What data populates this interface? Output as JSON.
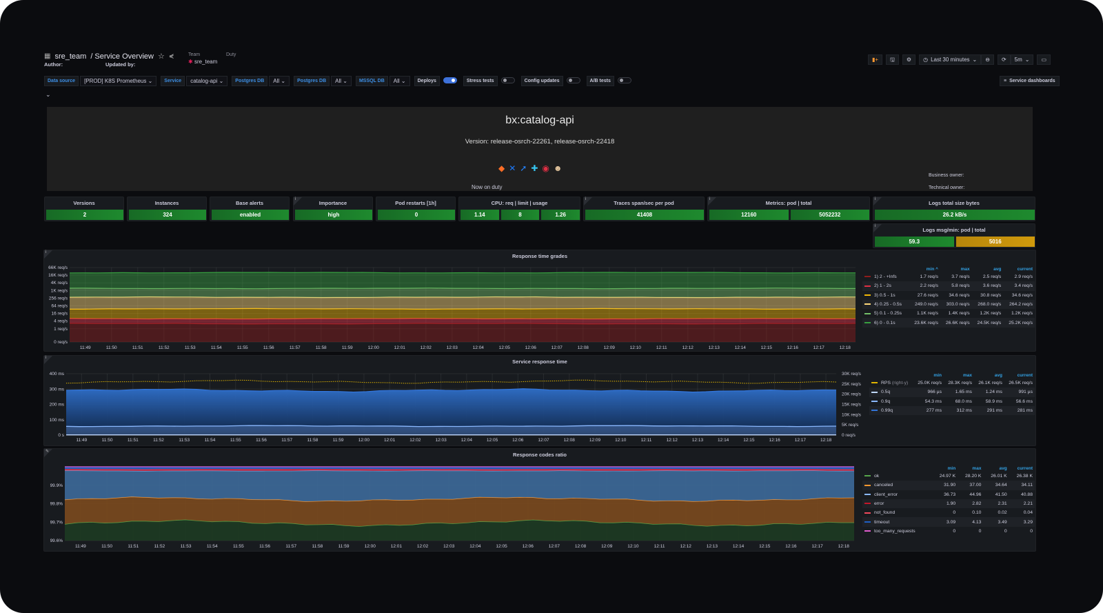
{
  "header": {
    "breadcrumb_team": "sre_team",
    "breadcrumb_sep": "/",
    "title": "Service Overview",
    "author_label": "Author:",
    "updated_label": "Updated by:",
    "team_label": "Team",
    "team_value": "sre_team",
    "duty_label": "Duty"
  },
  "toolbar": {
    "time_range": "Last 30 minutes",
    "refresh": "5m",
    "service_dashboards": "Service dashboards"
  },
  "variables": [
    {
      "label": "Data source",
      "value": "[PROD] K8S Prometheus"
    },
    {
      "label": "Service",
      "value": "catalog-api"
    },
    {
      "label": "Postgres DB",
      "value": "All"
    },
    {
      "label": "Postgres DB",
      "value": "All"
    },
    {
      "label": "MSSQL DB",
      "value": "All"
    }
  ],
  "toggles": [
    {
      "label": "Deploys",
      "on": true
    },
    {
      "label": "Stress tests",
      "on": false
    },
    {
      "label": "Config updates",
      "on": false
    },
    {
      "label": "A/B tests",
      "on": false
    }
  ],
  "info_panel": {
    "title": "bx:catalog-api",
    "version": "Version: release-osrch-22261, release-osrch-22418",
    "now_on_duty": "Now on duty",
    "business_owner": "Business owner:",
    "technical_owner": "Technical owner:"
  },
  "stats": {
    "versions": {
      "title": "Versions",
      "value": "2"
    },
    "instances": {
      "title": "Instances",
      "value": "324"
    },
    "base_alerts": {
      "title": "Base alerts",
      "value": "enabled"
    },
    "importance": {
      "title": "Importance",
      "value": "high"
    },
    "pod_restarts": {
      "title": "Pod restarts [1h]",
      "value": "0"
    },
    "cpu": {
      "title": "CPU: req | limit | usage",
      "values": [
        "1.14",
        "8",
        "1.26"
      ]
    },
    "traces": {
      "title": "Traces span/sec per pod",
      "value": "41408"
    },
    "metrics": {
      "title": "Metrics: pod | total",
      "values": [
        "12160",
        "5052232"
      ]
    },
    "logs_size": {
      "title": "Logs total size bytes",
      "value": "26.2 kB/s"
    },
    "logs_msg": {
      "title": "Logs msg/min: pod | total",
      "values": [
        "59.3",
        "5016"
      ]
    }
  },
  "time_labels": [
    "11:49",
    "11:50",
    "11:51",
    "11:52",
    "11:53",
    "11:54",
    "11:55",
    "11:56",
    "11:57",
    "11:58",
    "11:59",
    "12:00",
    "12:01",
    "12:02",
    "12:03",
    "12:04",
    "12:05",
    "12:06",
    "12:07",
    "12:08",
    "12:09",
    "12:10",
    "12:11",
    "12:12",
    "12:13",
    "12:14",
    "12:15",
    "12:16",
    "12:17",
    "12:18"
  ],
  "chart_data": [
    {
      "type": "area",
      "title": "Response time grades",
      "yscale": "log4",
      "yticks": [
        "66K req/s",
        "16K req/s",
        "4K req/s",
        "1K req/s",
        "256 req/s",
        "64 req/s",
        "16 req/s",
        "4 req/s",
        "1 req/s",
        "0 req/s"
      ],
      "legend_headers": [
        "min ^",
        "max",
        "avg",
        "current"
      ],
      "series": [
        {
          "name": "1) 2 - +Infs",
          "color": "#8f1c1c",
          "min": "1.7 req/s",
          "max": "3.7 req/s",
          "avg": "2.5 req/s",
          "current": "2.9 req/s",
          "level": 2.5
        },
        {
          "name": "2) 1 - 2s",
          "color": "#e02f44",
          "min": "2.2 req/s",
          "max": "5.8 req/s",
          "avg": "3.6 req/s",
          "current": "3.4 req/s",
          "level": 3.6
        },
        {
          "name": "3) 0.5 - 1s",
          "color": "#f2b705",
          "min": "27.6 req/s",
          "max": "34.6 req/s",
          "avg": "30.8 req/s",
          "current": "34.6 req/s",
          "level": 30.8
        },
        {
          "name": "4) 0.25 - 0.5s",
          "color": "#ffd97a",
          "min": "249.0 req/s",
          "max": "303.0 req/s",
          "avg": "268.0 req/s",
          "current": "264.2 req/s",
          "level": 268
        },
        {
          "name": "5) 0.1 - 0.25s",
          "color": "#73bf69",
          "min": "1.1K req/s",
          "max": "1.4K req/s",
          "avg": "1.2K req/s",
          "current": "1.2K req/s",
          "level": 1200
        },
        {
          "name": "6) 0 - 0.1s",
          "color": "#37a040",
          "min": "23.6K req/s",
          "max": "26.6K req/s",
          "avg": "24.5K req/s",
          "current": "25.2K req/s",
          "level": 24500
        }
      ]
    },
    {
      "type": "area",
      "title": "Service response time",
      "yticks_left": [
        "400 ms",
        "300 ms",
        "200 ms",
        "100 ms",
        "0 s"
      ],
      "ylim_left": [
        0,
        400
      ],
      "yticks_right": [
        "30K req/s",
        "25K req/s",
        "20K req/s",
        "15K req/s",
        "10K req/s",
        "5K req/s",
        "0 req/s"
      ],
      "ylim_right": [
        0,
        30000
      ],
      "legend_headers": [
        "min",
        "max",
        "avg",
        "current"
      ],
      "series": [
        {
          "name": "RPS",
          "suffix": "(right-y)",
          "color": "#e0b400",
          "min": "25.0K req/s",
          "max": "28.3K req/s",
          "avg": "26.1K req/s",
          "current": "26.5K req/s",
          "level": 26100,
          "axis": "right"
        },
        {
          "name": "0.5q",
          "color": "#c0d8ff",
          "min": "966 µs",
          "max": "1.65 ms",
          "avg": "1.24 ms",
          "current": "991 µs",
          "level": 1.24,
          "axis": "left"
        },
        {
          "name": "0.9q",
          "color": "#8ab8ff",
          "min": "54.3 ms",
          "max": "68.0 ms",
          "avg": "58.9 ms",
          "current": "56.6 ms",
          "level": 58.9,
          "axis": "left"
        },
        {
          "name": "0.99q",
          "color": "#3274d9",
          "min": "277 ms",
          "max": "312 ms",
          "avg": "291 ms",
          "current": "281 ms",
          "level": 291,
          "axis": "left"
        }
      ]
    },
    {
      "type": "area",
      "title": "Response codes ratio",
      "yticks": [
        "99.9%",
        "99.8%",
        "99.7%",
        "99.6%"
      ],
      "ylim": [
        99.6,
        100
      ],
      "legend_headers": [
        "min",
        "max",
        "avg",
        "current"
      ],
      "series": [
        {
          "name": "ok",
          "color": "#56a64b",
          "min": "24.97 K",
          "max": "28.20 K",
          "avg": "26.01 K",
          "current": "26.38 K",
          "level": 26380
        },
        {
          "name": "canceled",
          "color": "#ff9830",
          "min": "31.90",
          "max": "37.00",
          "avg": "34.64",
          "current": "34.11",
          "level": 34.11
        },
        {
          "name": "client_error",
          "color": "#8ab8ff",
          "min": "36.73",
          "max": "44.96",
          "avg": "41.50",
          "current": "40.88",
          "level": 40.88
        },
        {
          "name": "error",
          "color": "#c4162a",
          "min": "1.90",
          "max": "2.82",
          "avg": "2.31",
          "current": "2.21",
          "level": 2.21
        },
        {
          "name": "not_found",
          "color": "#f2495c",
          "min": "0",
          "max": "0.10",
          "avg": "0.02",
          "current": "0.04",
          "level": 0.04
        },
        {
          "name": "timeout",
          "color": "#1f60c4",
          "min": "3.09",
          "max": "4.13",
          "avg": "3.49",
          "current": "3.29",
          "level": 3.29
        },
        {
          "name": "too_many_requests",
          "color": "#e05cce",
          "min": "0",
          "max": "0",
          "avg": "0",
          "current": "0",
          "level": 0
        }
      ]
    }
  ]
}
